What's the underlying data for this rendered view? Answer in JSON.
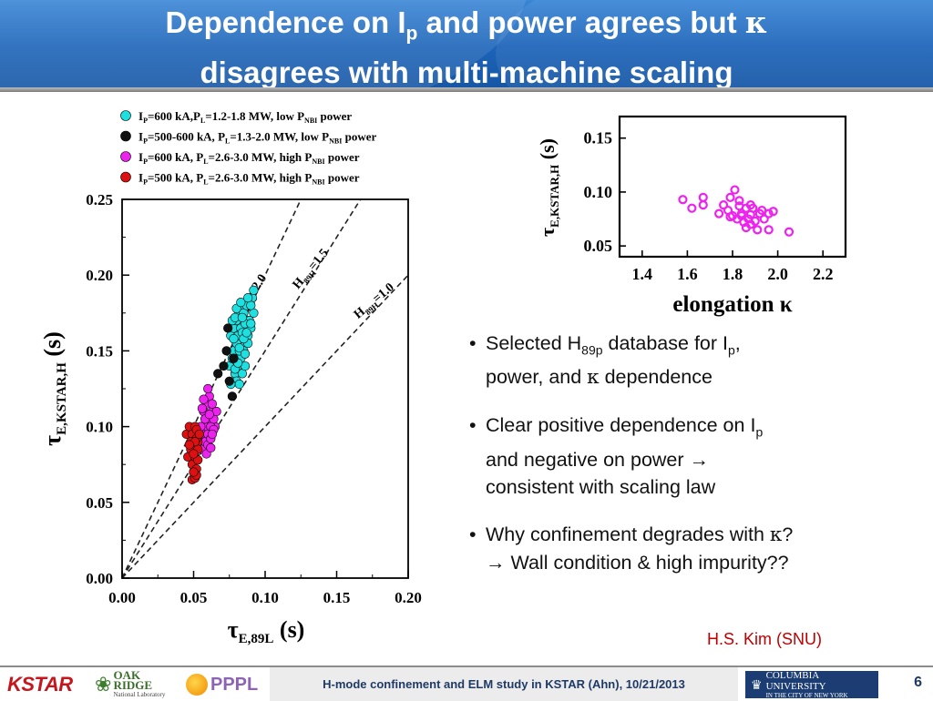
{
  "slide": {
    "title_line1_a": "Dependence on I",
    "title_line1_sub": "p",
    "title_line1_b": " and power agrees but ",
    "title_kappa": "κ",
    "title_line2": "disagrees with multi-machine scaling"
  },
  "bullets": [
    {
      "a": "Selected H",
      "sub": "89p",
      "b": " database for I",
      "sub2": "p",
      "c": ",",
      "d": "power, and ",
      "kappa": "κ",
      "e": " dependence"
    },
    {
      "a": "Clear positive dependence on I",
      "sub": "p",
      "b": "and negative on power ",
      "arrow": "→",
      "c": "consistent with scaling law"
    },
    {
      "a": "Why confinement degrades with ",
      "kappa": "κ",
      "b": "?",
      "arrow": "→",
      "c": " Wall condition & high impurity??"
    }
  ],
  "author": "H.S. Kim (SNU)",
  "footer": {
    "text": "H-mode confinement and ELM study in KSTAR (Ahn), 10/21/2013",
    "page_number": "6",
    "logos": [
      {
        "icon": "kstar-logo",
        "text": "KSTAR"
      },
      {
        "icon": "oak-ridge-logo",
        "text1": "OAK",
        "text2": "RIDGE",
        "text3": "National Laboratory"
      },
      {
        "icon": "pppl-logo",
        "text": "PPPL"
      },
      {
        "icon": "columbia-logo",
        "text1": "COLUMBIA UNIVERSITY",
        "text2": "IN THE CITY OF NEW YORK"
      }
    ]
  },
  "chart_data": [
    {
      "type": "scatter",
      "xlabel_main": "τ",
      "xlabel_sub": "E,89L",
      "xlabel_unit": "(s)",
      "ylabel_main": "τ",
      "ylabel_sub": "E,KSTAR,H",
      "ylabel_unit": "(s)",
      "xlim": [
        0,
        0.2
      ],
      "ylim": [
        0,
        0.25
      ],
      "xticks": [
        0,
        0.05,
        0.1,
        0.15,
        0.2
      ],
      "xtick_labels": [
        "0.00",
        "0.05",
        "0.10",
        "0.15",
        "0.20"
      ],
      "yticks": [
        0,
        0.05,
        0.1,
        0.15,
        0.2,
        0.25
      ],
      "ytick_labels": [
        "0.00",
        "0.05",
        "0.10",
        "0.15",
        "0.20",
        "0.25"
      ],
      "reference_lines": [
        {
          "slope": 2.0,
          "label_main": "H",
          "label_sub": "89H",
          "label_val": "=2.0"
        },
        {
          "slope": 1.5,
          "label_main": "H",
          "label_sub": "89H",
          "label_val": "=1.5"
        },
        {
          "slope": 1.0,
          "label_main": "H",
          "label_sub": "89H",
          "label_val": "=1.0"
        }
      ],
      "legend_position": "top-left",
      "series": [
        {
          "color": "#1ee0e0",
          "legend": {
            "p1": "I",
            "p1s": "P",
            "p2": "=600 kA,",
            "p3": "P",
            "p3s": "L",
            "p4": "=1.2-1.8  MW, low P",
            "p4s": "NBI",
            "p5": " power"
          },
          "x": [
            0.075,
            0.077,
            0.079,
            0.081,
            0.083,
            0.085,
            0.087,
            0.076,
            0.078,
            0.08,
            0.082,
            0.084,
            0.086,
            0.079,
            0.081,
            0.083,
            0.085,
            0.088,
            0.09,
            0.092,
            0.08,
            0.082,
            0.084,
            0.086,
            0.078,
            0.08,
            0.077,
            0.079,
            0.083,
            0.085,
            0.087,
            0.089,
            0.091,
            0.076,
            0.081,
            0.084,
            0.088,
            0.09,
            0.078,
            0.082,
            0.086,
            0.08,
            0.083,
            0.085,
            0.079,
            0.082,
            0.087,
            0.09,
            0.092,
            0.084,
            0.081,
            0.078,
            0.086,
            0.088
          ],
          "y": [
            0.14,
            0.145,
            0.15,
            0.155,
            0.16,
            0.165,
            0.17,
            0.16,
            0.165,
            0.17,
            0.175,
            0.18,
            0.155,
            0.135,
            0.14,
            0.145,
            0.15,
            0.16,
            0.165,
            0.175,
            0.13,
            0.128,
            0.135,
            0.14,
            0.15,
            0.155,
            0.17,
            0.172,
            0.165,
            0.175,
            0.18,
            0.17,
            0.185,
            0.128,
            0.16,
            0.162,
            0.155,
            0.18,
            0.145,
            0.15,
            0.168,
            0.178,
            0.182,
            0.158,
            0.138,
            0.152,
            0.162,
            0.168,
            0.19,
            0.172,
            0.142,
            0.158,
            0.148,
            0.185
          ]
        },
        {
          "color": "#111111",
          "legend": {
            "p1": "I",
            "p1s": "P",
            "p2": "=500-600 kA, ",
            "p3": "P",
            "p3s": "L",
            "p4": "=1.3-2.0  MW, low P",
            "p4s": "NBI",
            "p5": " power"
          },
          "x": [
            0.074,
            0.073,
            0.071,
            0.075,
            0.067,
            0.077,
            0.078
          ],
          "y": [
            0.165,
            0.15,
            0.14,
            0.13,
            0.135,
            0.12,
            0.145
          ]
        },
        {
          "color": "#ee22ee",
          "legend": {
            "p1": "I",
            "p1s": "P",
            "p2": "=600 kA, ",
            "p3": "P",
            "p3s": "L",
            "p4": "=2.6-3.0  MW, high P",
            "p4s": "NBI",
            "p5": " power"
          },
          "x": [
            0.055,
            0.057,
            0.059,
            0.061,
            0.063,
            0.065,
            0.056,
            0.058,
            0.06,
            0.062,
            0.064,
            0.057,
            0.059,
            0.061,
            0.063,
            0.066,
            0.055,
            0.058,
            0.06,
            0.062,
            0.064,
            0.056,
            0.059,
            0.061,
            0.063,
            0.057,
            0.06,
            0.062
          ],
          "y": [
            0.09,
            0.095,
            0.1,
            0.105,
            0.11,
            0.1,
            0.085,
            0.09,
            0.095,
            0.1,
            0.105,
            0.11,
            0.115,
            0.12,
            0.115,
            0.11,
            0.1,
            0.105,
            0.088,
            0.092,
            0.098,
            0.112,
            0.082,
            0.108,
            0.095,
            0.118,
            0.125,
            0.086
          ]
        },
        {
          "color": "#dd1111",
          "legend": {
            "p1": "I",
            "p1s": "P",
            "p2": "=500 kA, ",
            "p3": "P",
            "p3s": "L",
            "p4": "=2.6-3.0  MW, high P",
            "p4s": "NBI",
            "p5": " power"
          },
          "x": [
            0.045,
            0.047,
            0.049,
            0.051,
            0.053,
            0.048,
            0.05,
            0.052,
            0.046,
            0.049,
            0.051,
            0.053,
            0.05,
            0.052,
            0.048,
            0.051,
            0.053,
            0.049,
            0.051,
            0.047,
            0.052,
            0.05,
            0.054,
            0.052,
            0.05
          ],
          "y": [
            0.095,
            0.1,
            0.095,
            0.1,
            0.09,
            0.085,
            0.088,
            0.092,
            0.08,
            0.075,
            0.08,
            0.085,
            0.07,
            0.072,
            0.09,
            0.09,
            0.078,
            0.065,
            0.066,
            0.088,
            0.098,
            0.082,
            0.095,
            0.068,
            0.07
          ]
        }
      ]
    },
    {
      "type": "scatter",
      "xlabel": "elongation κ",
      "ylabel_main": "τ",
      "ylabel_sub": "E,KSTAR,H",
      "ylabel_unit": "(s)",
      "xlim": [
        1.3,
        2.3
      ],
      "ylim": [
        0.04,
        0.17
      ],
      "xticks": [
        1.4,
        1.6,
        1.8,
        2.0,
        2.2
      ],
      "xtick_labels": [
        "1.4",
        "1.6",
        "1.8",
        "2.0",
        "2.2"
      ],
      "yticks": [
        0.05,
        0.1,
        0.15
      ],
      "ytick_labels": [
        "0.05",
        "0.10",
        "0.15"
      ],
      "series": [
        {
          "color": "#ee22ee",
          "x": [
            1.58,
            1.62,
            1.67,
            1.67,
            1.74,
            1.76,
            1.78,
            1.79,
            1.81,
            1.83,
            1.8,
            1.82,
            1.84,
            1.86,
            1.88,
            1.85,
            1.87,
            1.89,
            1.9,
            1.92,
            1.83,
            1.86,
            1.88,
            1.91,
            1.94,
            1.96,
            1.98,
            2.05,
            1.88,
            1.84,
            1.79,
            1.93,
            1.96
          ],
          "y": [
            0.093,
            0.085,
            0.095,
            0.088,
            0.08,
            0.088,
            0.083,
            0.095,
            0.102,
            0.087,
            0.078,
            0.075,
            0.078,
            0.085,
            0.079,
            0.072,
            0.075,
            0.085,
            0.073,
            0.08,
            0.092,
            0.067,
            0.088,
            0.065,
            0.075,
            0.08,
            0.082,
            0.063,
            0.07,
            0.08,
            0.077,
            0.083,
            0.065
          ]
        }
      ]
    }
  ]
}
